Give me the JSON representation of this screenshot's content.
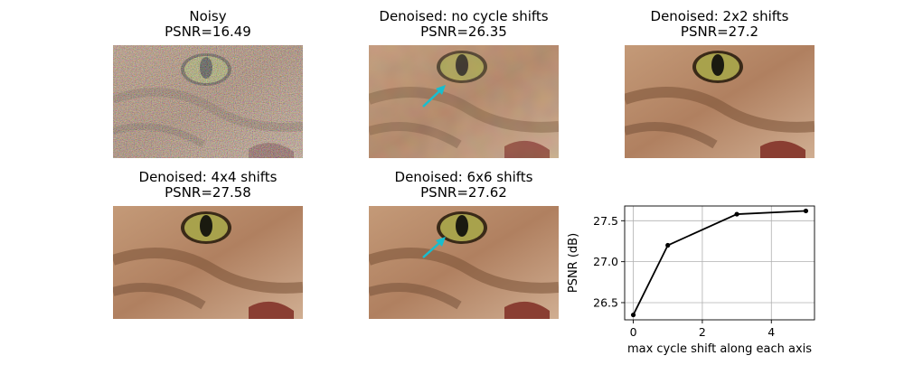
{
  "panels": [
    {
      "title": "Noisy",
      "psnr": "PSNR=16.49",
      "arrow": false,
      "style": "noisy"
    },
    {
      "title": "Denoised: no cycle shifts",
      "psnr": "PSNR=26.35",
      "arrow": true,
      "style": "blocky"
    },
    {
      "title": "Denoised: 2x2 shifts",
      "psnr": "PSNR=27.2",
      "arrow": false,
      "style": "smooth"
    },
    {
      "title": "Denoised: 4x4 shifts",
      "psnr": "PSNR=27.58",
      "arrow": false,
      "style": "smooth"
    },
    {
      "title": "Denoised: 6x6 shifts",
      "psnr": "PSNR=27.62",
      "arrow": true,
      "style": "smooth"
    }
  ],
  "arrow_color": "#17becf",
  "chart_data": {
    "type": "line",
    "x": [
      0,
      1,
      3,
      5
    ],
    "y": [
      26.35,
      27.2,
      27.58,
      27.62
    ],
    "xlabel": "max cycle shift along each axis",
    "ylabel": "PSNR (dB)",
    "xlim": [
      -0.25,
      5.25
    ],
    "ylim": [
      26.29,
      27.68
    ],
    "xticks": [
      0,
      2,
      4
    ],
    "yticks": [
      26.5,
      27.0,
      27.5
    ],
    "xtick_labels": [
      "0",
      "2",
      "4"
    ],
    "ytick_labels": [
      "26.5",
      "27.0",
      "27.5"
    ],
    "grid": true,
    "line_color": "#000000"
  }
}
